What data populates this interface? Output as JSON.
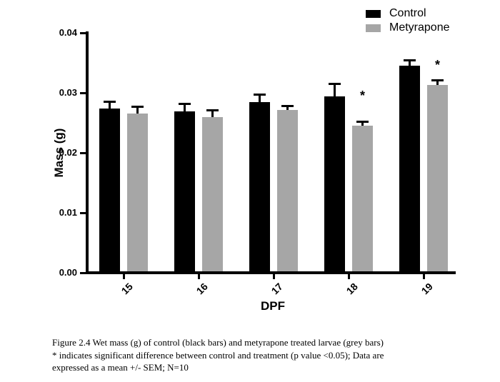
{
  "figure": {
    "caption_lines": [
      "Figure 2.4 Wet mass (g) of control (black bars) and metyrapone treated larvae (grey bars)",
      "* indicates significant difference between control and treatment (p value <0.05); Data are",
      "expressed as a mean +/- SEM; N=10"
    ]
  },
  "chart_data": {
    "type": "bar",
    "title": "",
    "xlabel": "DPF",
    "ylabel": "Mass (g)",
    "categories": [
      "15",
      "16",
      "17",
      "18",
      "19"
    ],
    "series": [
      {
        "name": "Control",
        "color": "#000000",
        "values": [
          0.0274,
          0.0269,
          0.0285,
          0.0294,
          0.0345
        ],
        "sem": [
          0.0012,
          0.0013,
          0.0013,
          0.0022,
          0.001
        ],
        "significant": [
          false,
          false,
          false,
          false,
          false
        ]
      },
      {
        "name": "Metyrapone",
        "color": "#a6a6a6",
        "values": [
          0.0265,
          0.026,
          0.0271,
          0.0245,
          0.0313
        ],
        "sem": [
          0.0012,
          0.0011,
          0.0008,
          0.0007,
          0.0008
        ],
        "significant": [
          false,
          false,
          false,
          true,
          true
        ]
      }
    ],
    "ylim": [
      0,
      0.04
    ],
    "yticks": [
      "0.00",
      "0.01",
      "0.02",
      "0.03",
      "0.04"
    ],
    "grid": false,
    "legend_position": "top-right",
    "significance_marker": "*",
    "error_bars": "upper SEM"
  }
}
